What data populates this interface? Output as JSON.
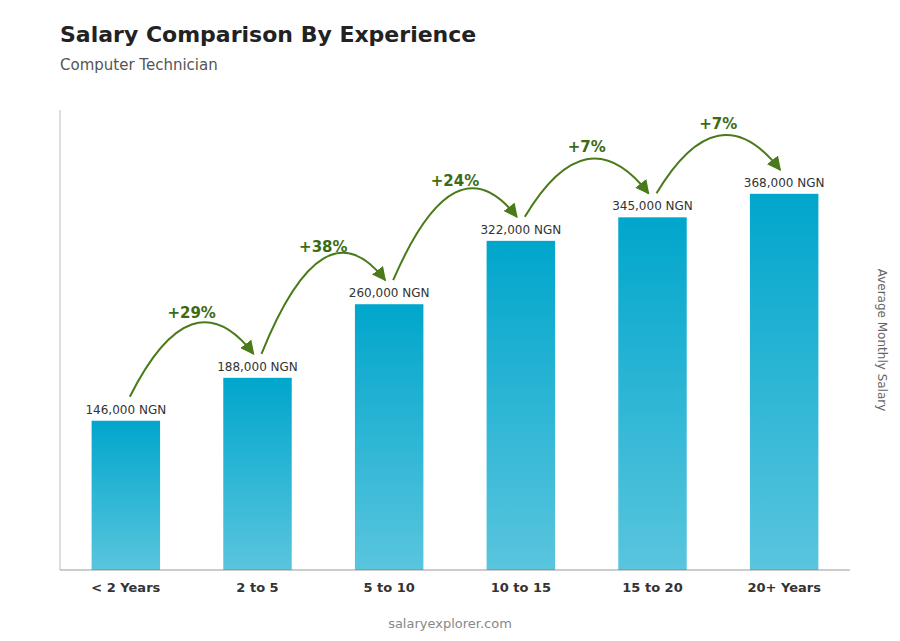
{
  "chart_data": {
    "type": "bar",
    "title": "Salary Comparison By Experience",
    "subtitle": "Computer Technician",
    "ylabel": "Average Monthly Salary",
    "categories": [
      "< 2 Years",
      "2 to 5",
      "5 to 10",
      "10 to 15",
      "15 to 20",
      "20+ Years"
    ],
    "values": [
      146000,
      188000,
      260000,
      322000,
      345000,
      368000
    ],
    "value_labels": [
      "146,000 NGN",
      "188,000 NGN",
      "260,000 NGN",
      "322,000 NGN",
      "345,000 NGN",
      "368,000 NGN"
    ],
    "data_labels": true,
    "annotations": [
      "+29%",
      "+38%",
      "+24%",
      "+7%",
      "+7%"
    ],
    "watermark": "salaryexplorer.com",
    "color": "#00a6cc",
    "ylim": [
      0,
      450000
    ],
    "tick_labels": "x",
    "grid": false
  }
}
